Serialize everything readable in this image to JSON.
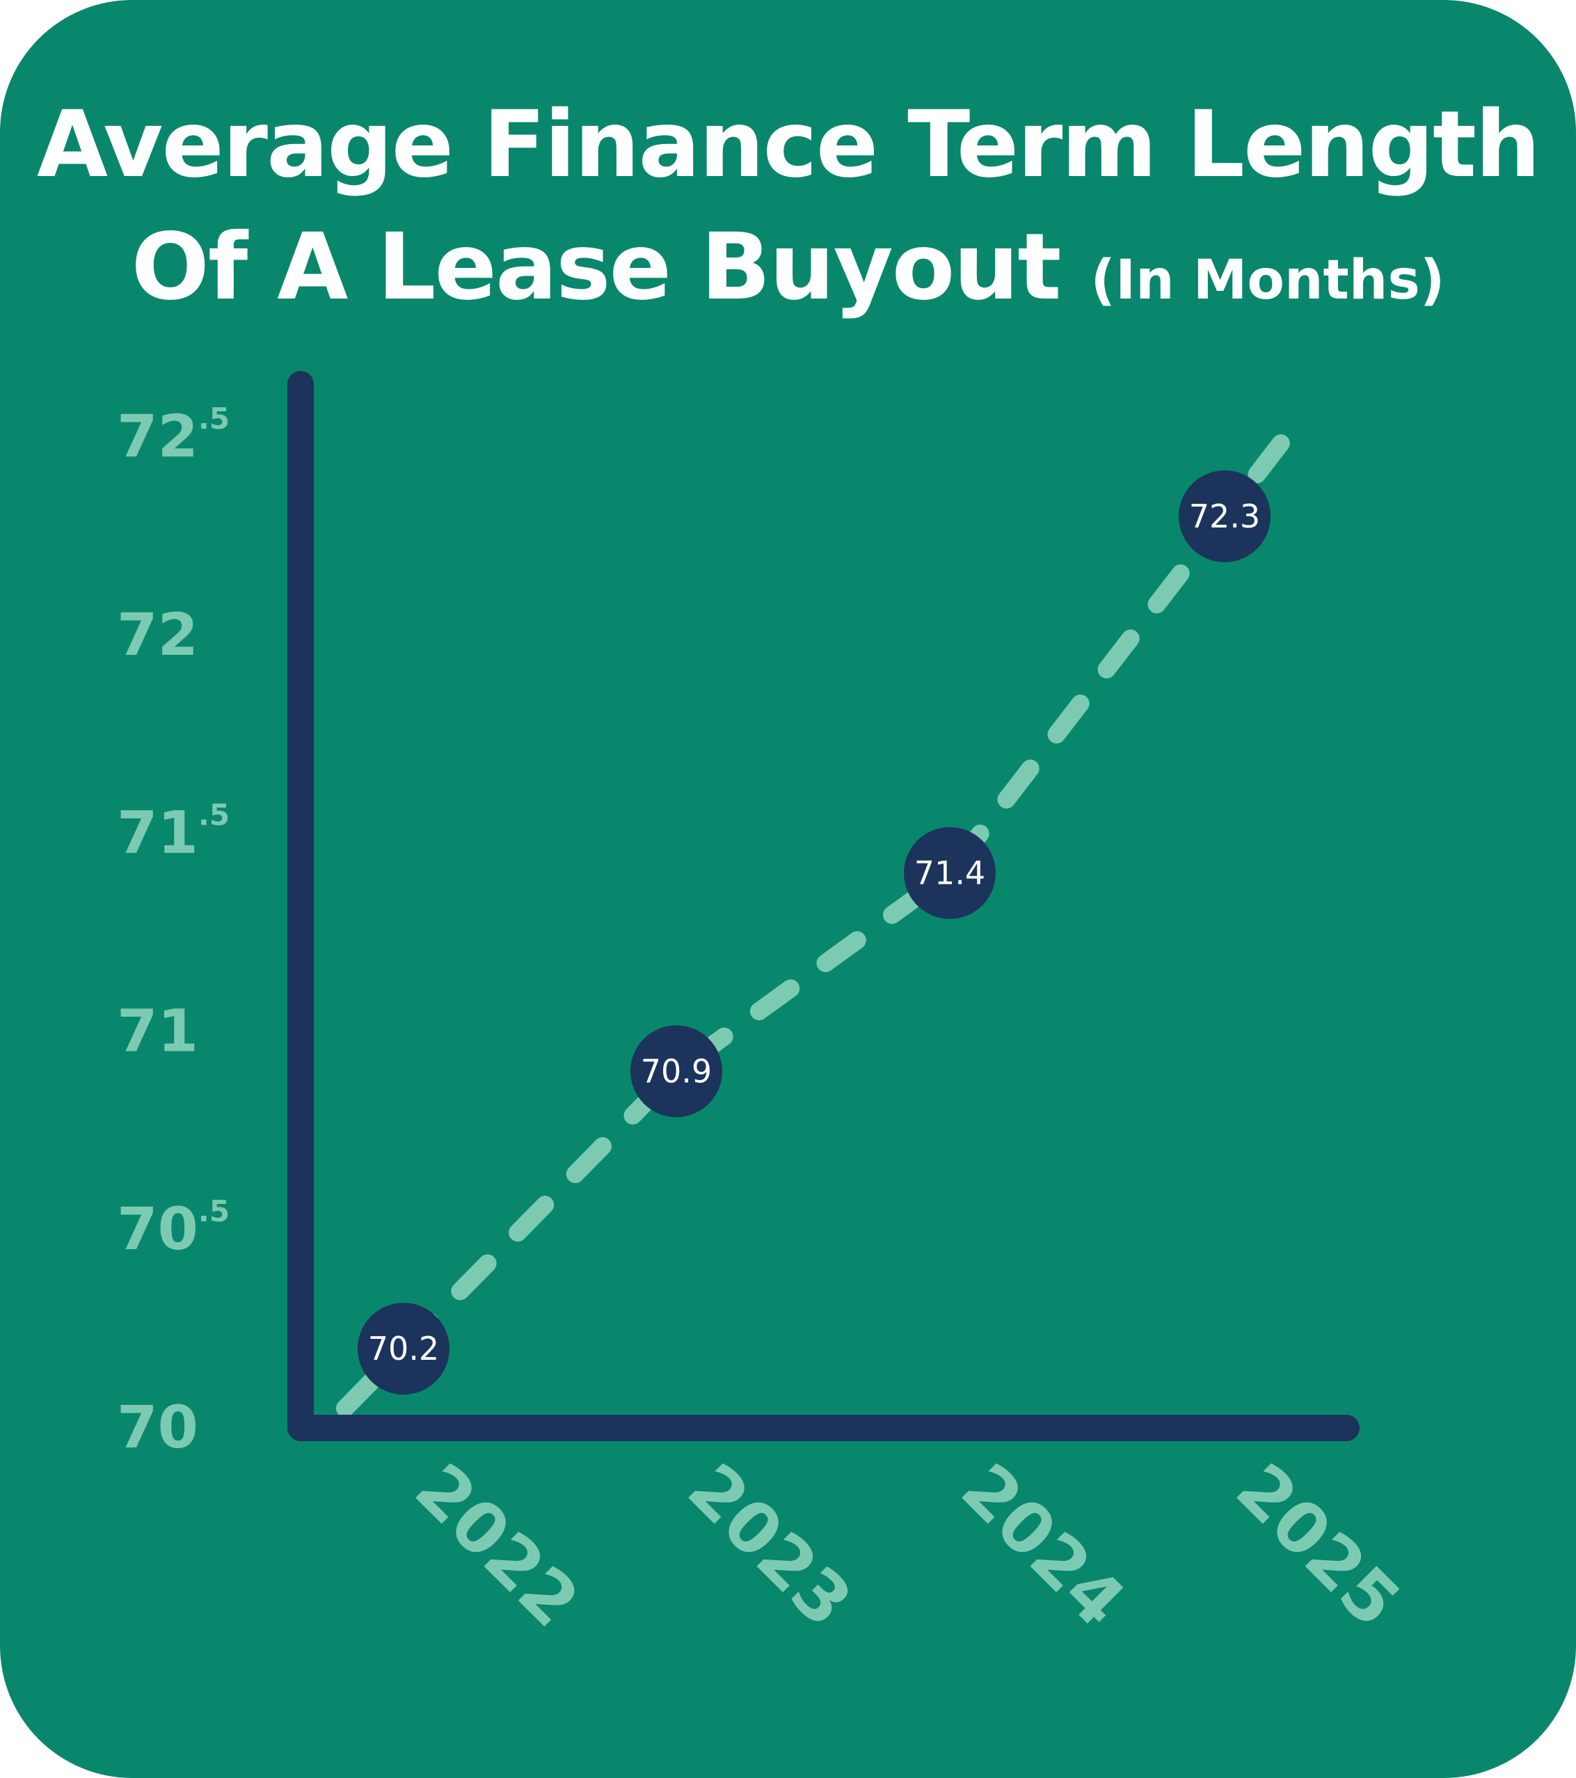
{
  "title": {
    "line1": "Average Finance Term Length",
    "line2": "Of A Lease Buyout",
    "unit": "(In Months)"
  },
  "colors": {
    "background": "#08876d",
    "axis": "#1c335c",
    "line": "#7dcab2",
    "tick_text": "#7dcab2",
    "marker": "#1c335c",
    "marker_text": "#ffffff"
  },
  "chart_data": {
    "type": "line",
    "title": "Average Finance Term Length Of A Lease Buyout (In Months)",
    "xlabel": "",
    "ylabel": "",
    "categories": [
      "2022",
      "2023",
      "2024",
      "2025"
    ],
    "series": [
      {
        "values": [
          70.2,
          70.9,
          71.4,
          72.3
        ]
      }
    ],
    "data_labels": [
      "70.2",
      "70.9",
      "71.4",
      "72.3"
    ],
    "ylim": [
      70,
      72.5
    ],
    "y_ticks": [
      {
        "main": "70",
        "sup": ""
      },
      {
        "main": "70",
        "sup": ".5"
      },
      {
        "main": "71",
        "sup": ""
      },
      {
        "main": "71",
        "sup": ".5"
      },
      {
        "main": "72",
        "sup": ""
      },
      {
        "main": "72",
        "sup": ".5"
      }
    ],
    "line_style": "dashed",
    "grid": false,
    "legend": "none",
    "x_tick_rotation": "diagonal"
  }
}
